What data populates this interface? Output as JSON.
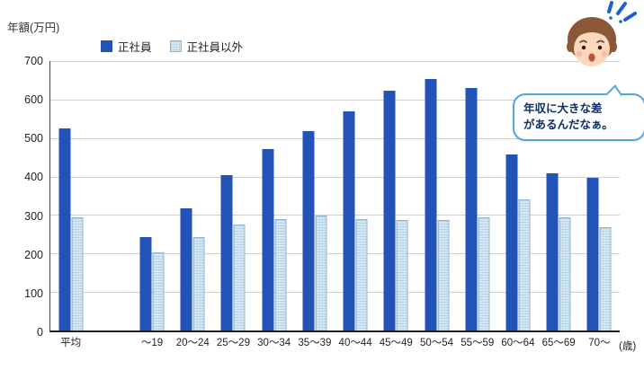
{
  "chart_data": {
    "type": "bar",
    "title": "年額(万円)",
    "x_unit_label": "(歳)",
    "categories": [
      "平均",
      "～19",
      "20～24",
      "25～29",
      "30～34",
      "35～39",
      "40～44",
      "45～49",
      "50～54",
      "55～59",
      "60～64",
      "65～69",
      "70～"
    ],
    "series": [
      {
        "name": "正社員",
        "color": "#2353b7",
        "values": [
          525,
          243,
          318,
          403,
          471,
          519,
          570,
          623,
          654,
          630,
          457,
          408,
          396
        ]
      },
      {
        "name": "正社員以外",
        "color": "#ddeef8",
        "values": [
          294,
          202,
          243,
          276,
          290,
          299,
          290,
          287,
          287,
          294,
          341,
          294,
          269
        ]
      }
    ],
    "ylim": [
      0,
      700
    ],
    "ytick_step": 100,
    "grid": true,
    "legend_position": "top",
    "gap_after_first_category": true
  },
  "annotation": {
    "line1": "年収に大きな差",
    "line2": "があるんだなぁ。"
  }
}
